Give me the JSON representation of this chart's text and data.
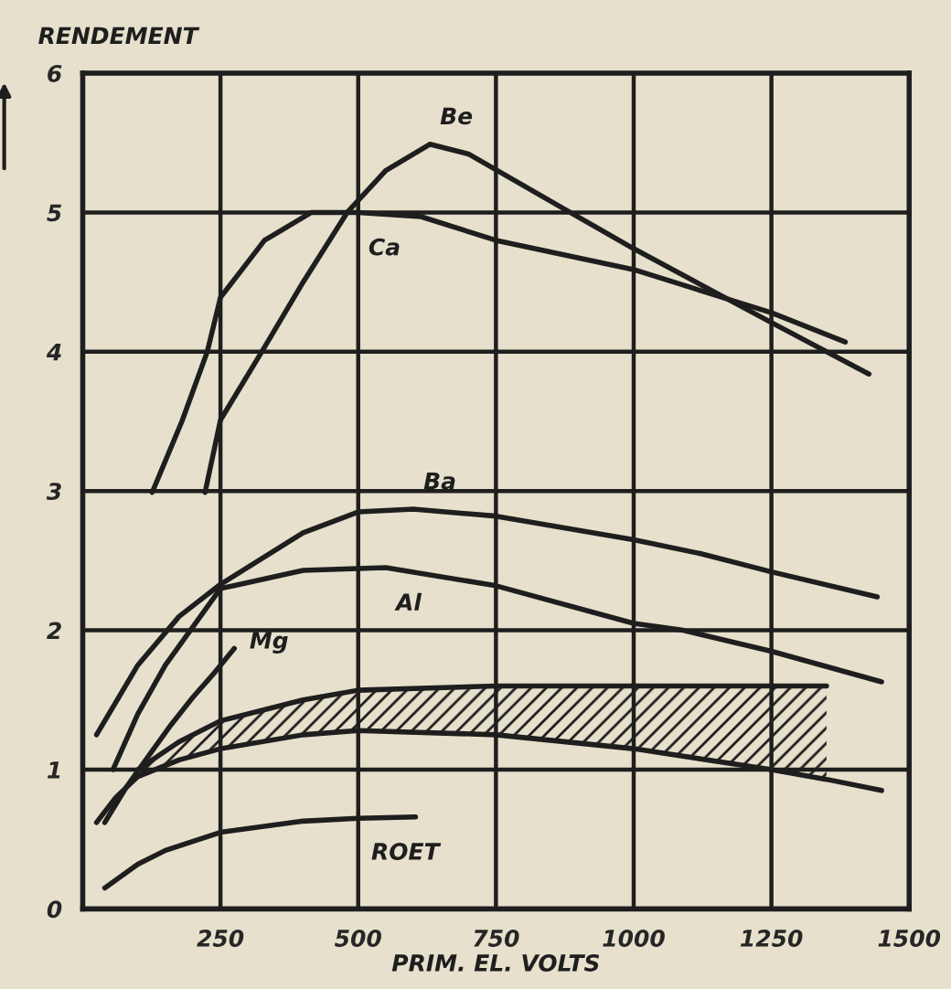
{
  "chart_data": {
    "type": "line",
    "ylabel": "RENDEMENT",
    "xlabel": "PRIM. EL. VOLTS",
    "xlim": [
      0,
      1500
    ],
    "xticks": [
      250,
      500,
      750,
      1000,
      1250,
      1500
    ],
    "ylim": [
      0,
      6
    ],
    "yticks": [
      0,
      1,
      2,
      3,
      4,
      5,
      6
    ],
    "grid": true,
    "legend": false,
    "series": [
      {
        "name": "Be",
        "color": "#1e1e1e",
        "x": [
          222,
          250,
          325,
          400,
          480,
          550,
          630,
          700,
          863,
          1000,
          1250,
          1427
        ],
        "values": [
          2.99,
          3.51,
          4.0,
          4.5,
          5.0,
          5.3,
          5.49,
          5.42,
          5.05,
          4.74,
          4.21,
          3.84
        ]
      },
      {
        "name": "Ca",
        "color": "#1e1e1e",
        "x": [
          126,
          180,
          226,
          250,
          330,
          415,
          500,
          614,
          750,
          1000,
          1250,
          1384
        ],
        "values": [
          2.99,
          3.5,
          4.0,
          4.39,
          4.8,
          5.0,
          5.0,
          4.97,
          4.8,
          4.59,
          4.28,
          4.07
        ]
      },
      {
        "name": "Ba",
        "color": "#1e1e1e",
        "x": [
          25,
          100,
          175,
          250,
          400,
          500,
          600,
          750,
          1000,
          1122,
          1250,
          1442
        ],
        "values": [
          1.25,
          1.75,
          2.1,
          2.33,
          2.7,
          2.85,
          2.87,
          2.82,
          2.65,
          2.55,
          2.42,
          2.24
        ]
      },
      {
        "name": "Al",
        "color": "#1e1e1e",
        "x": [
          55,
          100,
          150,
          250,
          400,
          550,
          750,
          1000,
          1090,
          1250,
          1450
        ],
        "values": [
          1.0,
          1.4,
          1.75,
          2.3,
          2.43,
          2.45,
          2.32,
          2.05,
          2.0,
          1.85,
          1.63
        ]
      },
      {
        "name": "Mg",
        "color": "#1e1e1e",
        "x": [
          40,
          80,
          120,
          160,
          200,
          240,
          275
        ],
        "values": [
          0.62,
          0.88,
          1.1,
          1.32,
          1.52,
          1.7,
          1.87
        ]
      },
      {
        "name": "ROET",
        "color": "#1e1e1e",
        "x": [
          40,
          100,
          150,
          250,
          400,
          500,
          604
        ],
        "values": [
          0.15,
          0.32,
          0.42,
          0.55,
          0.63,
          0.65,
          0.66
        ]
      },
      {
        "color": "#1e1e1e",
        "x": [
          25,
          60,
          100,
          175,
          250,
          400,
          500,
          750,
          1000,
          1250,
          1350,
          1450
        ],
        "values": [
          0.62,
          0.8,
          0.95,
          1.07,
          1.15,
          1.25,
          1.28,
          1.25,
          1.15,
          1.0,
          0.93,
          0.85
        ]
      },
      {
        "type": "area",
        "color": "#1e1e1e",
        "x": [
          100,
          175,
          250,
          400,
          500,
          750,
          1000,
          1250,
          1350
        ],
        "values": [
          1.0,
          1.2,
          1.35,
          1.5,
          1.57,
          1.6,
          1.6,
          1.6,
          1.6
        ]
      }
    ]
  }
}
